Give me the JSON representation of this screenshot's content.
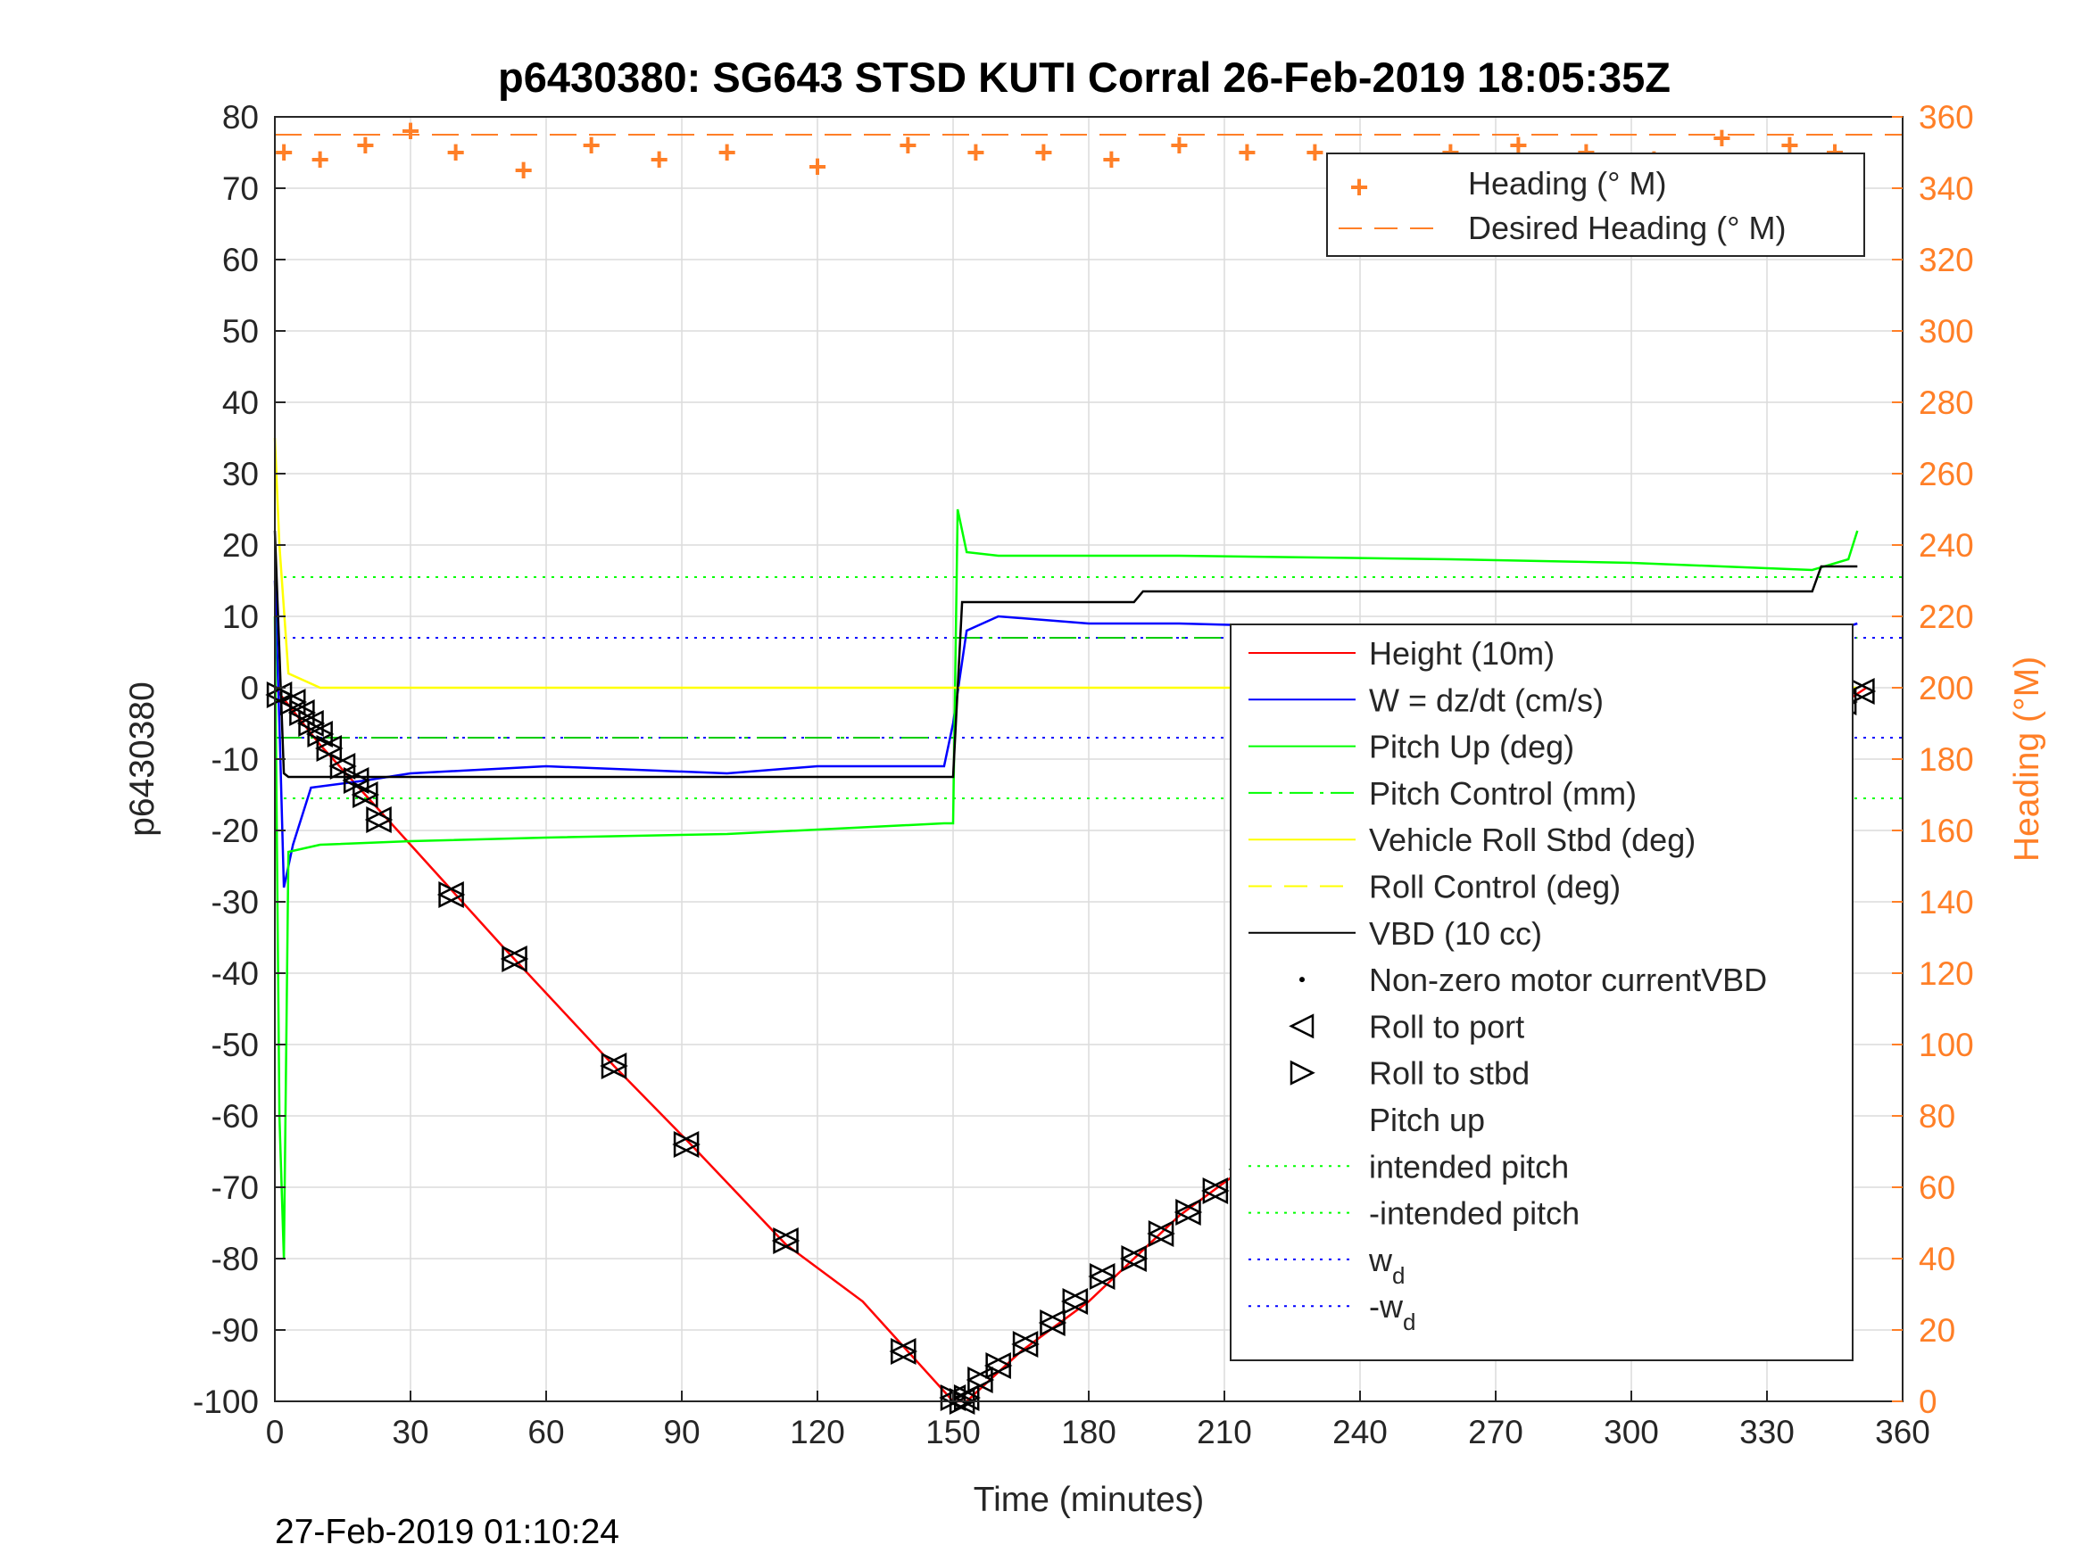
{
  "chart_data": {
    "type": "line",
    "title": "p6430380: SG643 STSD KUTI Corral 26-Feb-2019 18:05:35Z",
    "xlabel": "Time (minutes)",
    "ylabel": "p6430380",
    "ylabel_right": "Heading (°M)",
    "footer": "27-Feb-2019 01:10:24",
    "xlim": [
      0,
      360
    ],
    "ylim": [
      -100,
      80
    ],
    "ylim_right": [
      0,
      360
    ],
    "x_ticks": [
      "0",
      "30",
      "60",
      "90",
      "120",
      "150",
      "180",
      "210",
      "240",
      "270",
      "300",
      "330",
      "360"
    ],
    "y_ticks": [
      "80",
      "70",
      "60",
      "50",
      "40",
      "30",
      "20",
      "10",
      "0",
      "-10",
      "-20",
      "-30",
      "-40",
      "-50",
      "-60",
      "-70",
      "-80",
      "-90",
      "-100"
    ],
    "y_right_ticks": [
      "360",
      "340",
      "320",
      "300",
      "280",
      "260",
      "240",
      "220",
      "200",
      "180",
      "160",
      "140",
      "120",
      "100",
      "80",
      "60",
      "40",
      "20",
      "0"
    ],
    "grid": true,
    "heading_color": "#ff7f27",
    "legend_top": {
      "position": "top-right",
      "entries": [
        "Heading (° M)",
        "Desired Heading (° M)"
      ]
    },
    "legend_main": {
      "position": "right",
      "entries": [
        {
          "label": "Height (10m)",
          "color": "#ff0000",
          "style": "solid"
        },
        {
          "label": "W = dz/dt (cm/s)",
          "color": "#0000ff",
          "style": "solid"
        },
        {
          "label": "Pitch Up (deg)",
          "color": "#00ff00",
          "style": "solid"
        },
        {
          "label": "Pitch Control (mm)",
          "color": "#00ff00",
          "style": "dashdot"
        },
        {
          "label": "Vehicle Roll Stbd (deg)",
          "color": "#ffff00",
          "style": "solid"
        },
        {
          "label": "Roll Control (deg)",
          "color": "#ffff00",
          "style": "dashed"
        },
        {
          "label": "VBD (10 cc)",
          "color": "#000000",
          "style": "solid"
        },
        {
          "label": "Non-zero motor currentVBD",
          "color": "#000000",
          "style": "dot"
        },
        {
          "label": "Roll to port",
          "color": "#000000",
          "style": "tri-left"
        },
        {
          "label": "Roll to stbd",
          "color": "#000000",
          "style": "tri-right"
        },
        {
          "label": "Pitch up",
          "color": "#000000",
          "style": "tri-up"
        },
        {
          "label": "intended pitch",
          "color": "#00ff00",
          "style": "dotted"
        },
        {
          "label": "-intended pitch",
          "color": "#00ff00",
          "style": "dotted"
        },
        {
          "label": "w",
          "sub": "d",
          "color": "#0000ff",
          "style": "dotted"
        },
        {
          "label": "-w",
          "sub": "d",
          "color": "#0000ff",
          "style": "dotted"
        }
      ]
    },
    "reference_lines": {
      "intended_pitch": 15.5,
      "neg_intended_pitch": -15.5,
      "wd": 7,
      "neg_wd": -7,
      "pitch_control_dive": -7,
      "pitch_control_climb": 7,
      "desired_heading": 355
    },
    "series": [
      {
        "name": "Height (10m)",
        "color": "#ff0000",
        "x": [
          0,
          10,
          20,
          30,
          50,
          75,
          92,
          113,
          130,
          140,
          150,
          153,
          165,
          180,
          200,
          230,
          250,
          275,
          300,
          320,
          340,
          352
        ],
        "y": [
          0,
          -8,
          -15,
          -22,
          -36,
          -53,
          -64,
          -78,
          -86,
          -93,
          -100,
          -100,
          -93,
          -86,
          -74,
          -60,
          -48,
          -37,
          -24,
          -15,
          -5,
          0
        ]
      },
      {
        "name": "W = dz/dt (cm/s)",
        "color": "#0000ff",
        "x": [
          0,
          1,
          2,
          4,
          8,
          20,
          30,
          60,
          100,
          120,
          148,
          150,
          153,
          160,
          180,
          200,
          260,
          300,
          320,
          340,
          350
        ],
        "y": [
          15,
          -5,
          -28,
          -22,
          -14,
          -13,
          -12,
          -11,
          -12,
          -11,
          -11,
          -5,
          8,
          10,
          9,
          9,
          8,
          8,
          8,
          7,
          9
        ]
      },
      {
        "name": "Pitch Up (deg)",
        "color": "#00ff00",
        "x": [
          0,
          1,
          2,
          3,
          10,
          30,
          60,
          100,
          148,
          150,
          151,
          153,
          160,
          200,
          260,
          300,
          320,
          340,
          348,
          350
        ],
        "y": [
          10,
          -60,
          -80,
          -23,
          -22,
          -21.5,
          -21,
          -20.5,
          -19,
          -19,
          25,
          19,
          18.5,
          18.5,
          18,
          17.5,
          17,
          16.5,
          18,
          22
        ]
      },
      {
        "name": "Vehicle Roll Stbd (deg)",
        "color": "#ffff00",
        "x": [
          0,
          1,
          3,
          10,
          30,
          60,
          100,
          148,
          150,
          153,
          200,
          260,
          300,
          340,
          350
        ],
        "y": [
          35,
          20,
          2,
          0,
          0,
          0,
          0,
          0,
          0,
          0,
          0,
          0,
          0,
          0,
          0
        ]
      },
      {
        "name": "VBD (10 cc)",
        "color": "#000000",
        "x": [
          0,
          1,
          2,
          3,
          20,
          40,
          100,
          148,
          150,
          152,
          155,
          190,
          192,
          340,
          342,
          350
        ],
        "y": [
          22,
          5,
          -12,
          -12.5,
          -12.5,
          -12.5,
          -12.5,
          -12.5,
          -12.5,
          12,
          12,
          12,
          13.5,
          13.5,
          17,
          17
        ]
      },
      {
        "name": "Heading (° M)",
        "axis": "right",
        "color": "#ff7f27",
        "x": [
          2,
          10,
          20,
          30,
          40,
          55,
          70,
          85,
          100,
          120,
          140,
          155,
          170,
          185,
          200,
          215,
          230,
          245,
          260,
          275,
          290,
          305,
          320,
          335,
          345
        ],
        "y": [
          350,
          348,
          352,
          356,
          350,
          345,
          352,
          348,
          350,
          346,
          352,
          350,
          350,
          348,
          352,
          350,
          350,
          347,
          350,
          352,
          350,
          348,
          354,
          352,
          350
        ]
      }
    ],
    "markers": {
      "x": [
        1,
        4,
        6,
        8,
        10,
        12,
        15,
        18,
        20,
        23,
        39,
        53,
        75,
        91,
        113,
        139,
        150,
        152,
        153,
        156,
        160,
        166,
        172,
        177,
        183,
        190,
        196,
        202,
        208,
        214,
        225,
        230,
        236,
        250,
        261,
        274,
        296,
        306,
        317,
        325,
        330,
        334,
        340,
        344,
        347,
        351
      ],
      "y": [
        -1,
        -2,
        -3.5,
        -5,
        -6.5,
        -8.5,
        -11,
        -13,
        -15,
        -18.5,
        -29,
        -38,
        -53,
        -64,
        -77.5,
        -93,
        -99.5,
        -100,
        -99.5,
        -97,
        -95,
        -92,
        -89,
        -86,
        -82.5,
        -80,
        -76.5,
        -73.5,
        -70.5,
        -67.5,
        -61,
        -57.5,
        -54,
        -48.5,
        -42.5,
        -37,
        -25.5,
        -20.5,
        -14.5,
        -11,
        -9.5,
        -7.5,
        -4.5,
        -3,
        -2,
        -0.5
      ]
    }
  }
}
